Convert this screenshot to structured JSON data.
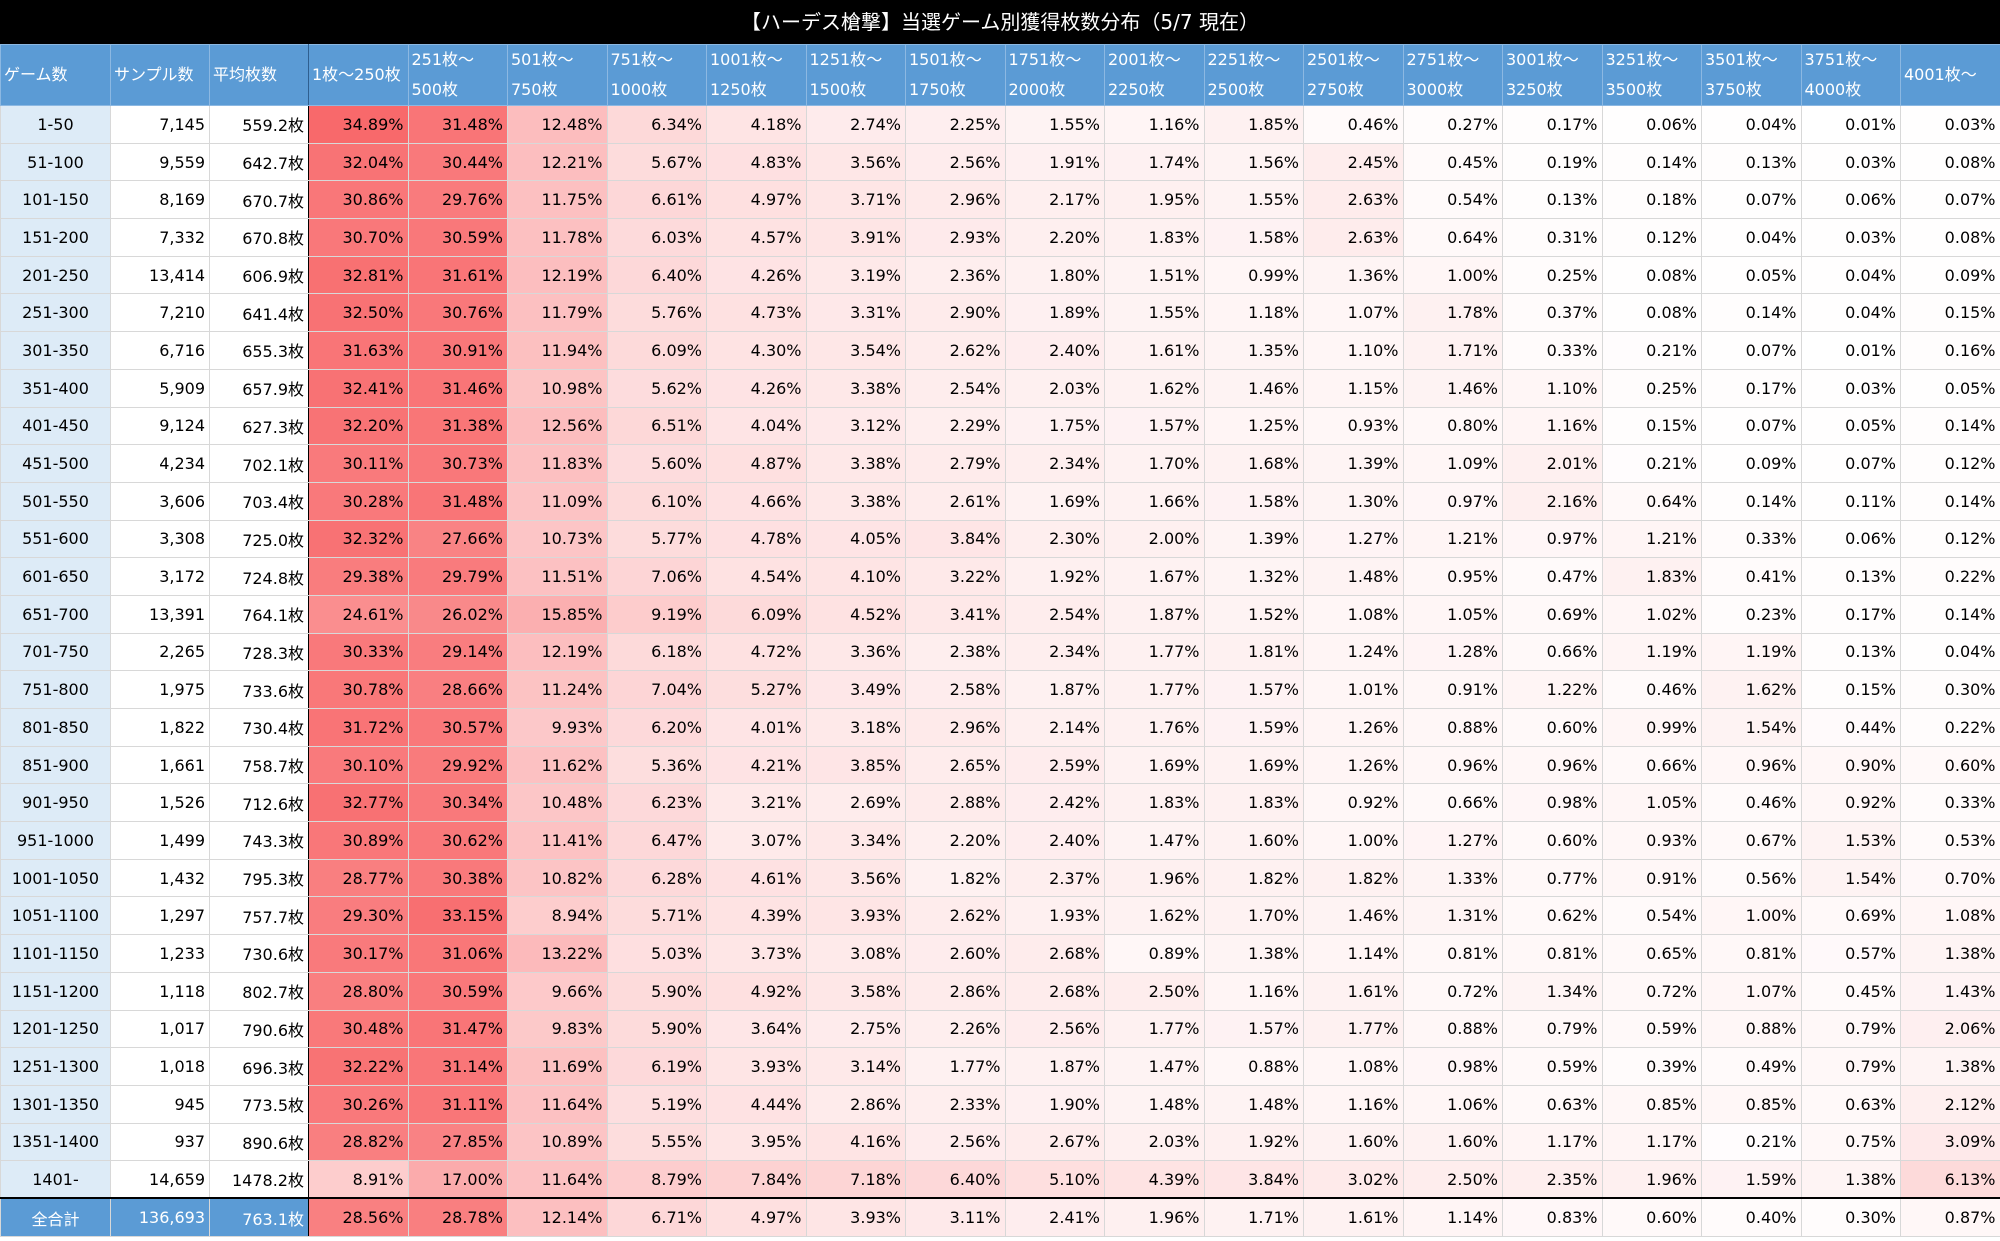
{
  "title": "【ハーデス槍撃】当選ゲーム別獲得枚数分布（5/7 現在）",
  "headers": [
    {
      "l1": "ゲーム数",
      "l2": ""
    },
    {
      "l1": "サンプル数",
      "l2": ""
    },
    {
      "l1": "平均枚数",
      "l2": ""
    },
    {
      "l1": "1枚〜250枚",
      "l2": ""
    },
    {
      "l1": "251枚〜",
      "l2": "500枚"
    },
    {
      "l1": "501枚〜",
      "l2": "750枚"
    },
    {
      "l1": "751枚〜",
      "l2": "1000枚"
    },
    {
      "l1": "1001枚〜",
      "l2": "1250枚"
    },
    {
      "l1": "1251枚〜",
      "l2": "1500枚"
    },
    {
      "l1": "1501枚〜",
      "l2": "1750枚"
    },
    {
      "l1": "1751枚〜",
      "l2": "2000枚"
    },
    {
      "l1": "2001枚〜",
      "l2": "2250枚"
    },
    {
      "l1": "2251枚〜",
      "l2": "2500枚"
    },
    {
      "l1": "2501枚〜",
      "l2": "2750枚"
    },
    {
      "l1": "2751枚〜",
      "l2": "3000枚"
    },
    {
      "l1": "3001枚〜",
      "l2": "3250枚"
    },
    {
      "l1": "3251枚〜",
      "l2": "3500枚"
    },
    {
      "l1": "3501枚〜",
      "l2": "3750枚"
    },
    {
      "l1": "3751枚〜",
      "l2": "4000枚"
    },
    {
      "l1": "4001枚〜",
      "l2": ""
    }
  ],
  "rows": [
    [
      "1-50",
      "7,145",
      "559.2枚",
      "34.89%",
      "31.48%",
      "12.48%",
      "6.34%",
      "4.18%",
      "2.74%",
      "2.25%",
      "1.55%",
      "1.16%",
      "1.85%",
      "0.46%",
      "0.27%",
      "0.17%",
      "0.06%",
      "0.04%",
      "0.01%",
      "0.03%"
    ],
    [
      "51-100",
      "9,559",
      "642.7枚",
      "32.04%",
      "30.44%",
      "12.21%",
      "5.67%",
      "4.83%",
      "3.56%",
      "2.56%",
      "1.91%",
      "1.74%",
      "1.56%",
      "2.45%",
      "0.45%",
      "0.19%",
      "0.14%",
      "0.13%",
      "0.03%",
      "0.08%"
    ],
    [
      "101-150",
      "8,169",
      "670.7枚",
      "30.86%",
      "29.76%",
      "11.75%",
      "6.61%",
      "4.97%",
      "3.71%",
      "2.96%",
      "2.17%",
      "1.95%",
      "1.55%",
      "2.63%",
      "0.54%",
      "0.13%",
      "0.18%",
      "0.07%",
      "0.06%",
      "0.07%"
    ],
    [
      "151-200",
      "7,332",
      "670.8枚",
      "30.70%",
      "30.59%",
      "11.78%",
      "6.03%",
      "4.57%",
      "3.91%",
      "2.93%",
      "2.20%",
      "1.83%",
      "1.58%",
      "2.63%",
      "0.64%",
      "0.31%",
      "0.12%",
      "0.04%",
      "0.03%",
      "0.08%"
    ],
    [
      "201-250",
      "13,414",
      "606.9枚",
      "32.81%",
      "31.61%",
      "12.19%",
      "6.40%",
      "4.26%",
      "3.19%",
      "2.36%",
      "1.80%",
      "1.51%",
      "0.99%",
      "1.36%",
      "1.00%",
      "0.25%",
      "0.08%",
      "0.05%",
      "0.04%",
      "0.09%"
    ],
    [
      "251-300",
      "7,210",
      "641.4枚",
      "32.50%",
      "30.76%",
      "11.79%",
      "5.76%",
      "4.73%",
      "3.31%",
      "2.90%",
      "1.89%",
      "1.55%",
      "1.18%",
      "1.07%",
      "1.78%",
      "0.37%",
      "0.08%",
      "0.14%",
      "0.04%",
      "0.15%"
    ],
    [
      "301-350",
      "6,716",
      "655.3枚",
      "31.63%",
      "30.91%",
      "11.94%",
      "6.09%",
      "4.30%",
      "3.54%",
      "2.62%",
      "2.40%",
      "1.61%",
      "1.35%",
      "1.10%",
      "1.71%",
      "0.33%",
      "0.21%",
      "0.07%",
      "0.01%",
      "0.16%"
    ],
    [
      "351-400",
      "5,909",
      "657.9枚",
      "32.41%",
      "31.46%",
      "10.98%",
      "5.62%",
      "4.26%",
      "3.38%",
      "2.54%",
      "2.03%",
      "1.62%",
      "1.46%",
      "1.15%",
      "1.46%",
      "1.10%",
      "0.25%",
      "0.17%",
      "0.03%",
      "0.05%"
    ],
    [
      "401-450",
      "9,124",
      "627.3枚",
      "32.20%",
      "31.38%",
      "12.56%",
      "6.51%",
      "4.04%",
      "3.12%",
      "2.29%",
      "1.75%",
      "1.57%",
      "1.25%",
      "0.93%",
      "0.80%",
      "1.16%",
      "0.15%",
      "0.07%",
      "0.05%",
      "0.14%"
    ],
    [
      "451-500",
      "4,234",
      "702.1枚",
      "30.11%",
      "30.73%",
      "11.83%",
      "5.60%",
      "4.87%",
      "3.38%",
      "2.79%",
      "2.34%",
      "1.70%",
      "1.68%",
      "1.39%",
      "1.09%",
      "2.01%",
      "0.21%",
      "0.09%",
      "0.07%",
      "0.12%"
    ],
    [
      "501-550",
      "3,606",
      "703.4枚",
      "30.28%",
      "31.48%",
      "11.09%",
      "6.10%",
      "4.66%",
      "3.38%",
      "2.61%",
      "1.69%",
      "1.66%",
      "1.58%",
      "1.30%",
      "0.97%",
      "2.16%",
      "0.64%",
      "0.14%",
      "0.11%",
      "0.14%"
    ],
    [
      "551-600",
      "3,308",
      "725.0枚",
      "32.32%",
      "27.66%",
      "10.73%",
      "5.77%",
      "4.78%",
      "4.05%",
      "3.84%",
      "2.30%",
      "2.00%",
      "1.39%",
      "1.27%",
      "1.21%",
      "0.97%",
      "1.21%",
      "0.33%",
      "0.06%",
      "0.12%"
    ],
    [
      "601-650",
      "3,172",
      "724.8枚",
      "29.38%",
      "29.79%",
      "11.51%",
      "7.06%",
      "4.54%",
      "4.10%",
      "3.22%",
      "1.92%",
      "1.67%",
      "1.32%",
      "1.48%",
      "0.95%",
      "0.47%",
      "1.83%",
      "0.41%",
      "0.13%",
      "0.22%"
    ],
    [
      "651-700",
      "13,391",
      "764.1枚",
      "24.61%",
      "26.02%",
      "15.85%",
      "9.19%",
      "6.09%",
      "4.52%",
      "3.41%",
      "2.54%",
      "1.87%",
      "1.52%",
      "1.08%",
      "1.05%",
      "0.69%",
      "1.02%",
      "0.23%",
      "0.17%",
      "0.14%"
    ],
    [
      "701-750",
      "2,265",
      "728.3枚",
      "30.33%",
      "29.14%",
      "12.19%",
      "6.18%",
      "4.72%",
      "3.36%",
      "2.38%",
      "2.34%",
      "1.77%",
      "1.81%",
      "1.24%",
      "1.28%",
      "0.66%",
      "1.19%",
      "1.19%",
      "0.13%",
      "0.04%"
    ],
    [
      "751-800",
      "1,975",
      "733.6枚",
      "30.78%",
      "28.66%",
      "11.24%",
      "7.04%",
      "5.27%",
      "3.49%",
      "2.58%",
      "1.87%",
      "1.77%",
      "1.57%",
      "1.01%",
      "0.91%",
      "1.22%",
      "0.46%",
      "1.62%",
      "0.15%",
      "0.30%"
    ],
    [
      "801-850",
      "1,822",
      "730.4枚",
      "31.72%",
      "30.57%",
      "9.93%",
      "6.20%",
      "4.01%",
      "3.18%",
      "2.96%",
      "2.14%",
      "1.76%",
      "1.59%",
      "1.26%",
      "0.88%",
      "0.60%",
      "0.99%",
      "1.54%",
      "0.44%",
      "0.22%"
    ],
    [
      "851-900",
      "1,661",
      "758.7枚",
      "30.10%",
      "29.92%",
      "11.62%",
      "5.36%",
      "4.21%",
      "3.85%",
      "2.65%",
      "2.59%",
      "1.69%",
      "1.69%",
      "1.26%",
      "0.96%",
      "0.96%",
      "0.66%",
      "0.96%",
      "0.90%",
      "0.60%"
    ],
    [
      "901-950",
      "1,526",
      "712.6枚",
      "32.77%",
      "30.34%",
      "10.48%",
      "6.23%",
      "3.21%",
      "2.69%",
      "2.88%",
      "2.42%",
      "1.83%",
      "1.83%",
      "0.92%",
      "0.66%",
      "0.98%",
      "1.05%",
      "0.46%",
      "0.92%",
      "0.33%"
    ],
    [
      "951-1000",
      "1,499",
      "743.3枚",
      "30.89%",
      "30.62%",
      "11.41%",
      "6.47%",
      "3.07%",
      "3.34%",
      "2.20%",
      "2.40%",
      "1.47%",
      "1.60%",
      "1.00%",
      "1.27%",
      "0.60%",
      "0.93%",
      "0.67%",
      "1.53%",
      "0.53%"
    ],
    [
      "1001-1050",
      "1,432",
      "795.3枚",
      "28.77%",
      "30.38%",
      "10.82%",
      "6.28%",
      "4.61%",
      "3.56%",
      "1.82%",
      "2.37%",
      "1.96%",
      "1.82%",
      "1.82%",
      "1.33%",
      "0.77%",
      "0.91%",
      "0.56%",
      "1.54%",
      "0.70%"
    ],
    [
      "1051-1100",
      "1,297",
      "757.7枚",
      "29.30%",
      "33.15%",
      "8.94%",
      "5.71%",
      "4.39%",
      "3.93%",
      "2.62%",
      "1.93%",
      "1.62%",
      "1.70%",
      "1.46%",
      "1.31%",
      "0.62%",
      "0.54%",
      "1.00%",
      "0.69%",
      "1.08%"
    ],
    [
      "1101-1150",
      "1,233",
      "730.6枚",
      "30.17%",
      "31.06%",
      "13.22%",
      "5.03%",
      "3.73%",
      "3.08%",
      "2.60%",
      "2.68%",
      "0.89%",
      "1.38%",
      "1.14%",
      "0.81%",
      "0.81%",
      "0.65%",
      "0.81%",
      "0.57%",
      "1.38%"
    ],
    [
      "1151-1200",
      "1,118",
      "802.7枚",
      "28.80%",
      "30.59%",
      "9.66%",
      "5.90%",
      "4.92%",
      "3.58%",
      "2.86%",
      "2.68%",
      "2.50%",
      "1.16%",
      "1.61%",
      "0.72%",
      "1.34%",
      "0.72%",
      "1.07%",
      "0.45%",
      "1.43%"
    ],
    [
      "1201-1250",
      "1,017",
      "790.6枚",
      "30.48%",
      "31.47%",
      "9.83%",
      "5.90%",
      "3.64%",
      "2.75%",
      "2.26%",
      "2.56%",
      "1.77%",
      "1.57%",
      "1.77%",
      "0.88%",
      "0.79%",
      "0.59%",
      "0.88%",
      "0.79%",
      "2.06%"
    ],
    [
      "1251-1300",
      "1,018",
      "696.3枚",
      "32.22%",
      "31.14%",
      "11.69%",
      "6.19%",
      "3.93%",
      "3.14%",
      "1.77%",
      "1.87%",
      "1.47%",
      "0.88%",
      "1.08%",
      "0.98%",
      "0.59%",
      "0.39%",
      "0.49%",
      "0.79%",
      "1.38%"
    ],
    [
      "1301-1350",
      "945",
      "773.5枚",
      "30.26%",
      "31.11%",
      "11.64%",
      "5.19%",
      "4.44%",
      "2.86%",
      "2.33%",
      "1.90%",
      "1.48%",
      "1.48%",
      "1.16%",
      "1.06%",
      "0.63%",
      "0.85%",
      "0.85%",
      "0.63%",
      "2.12%"
    ],
    [
      "1351-1400",
      "937",
      "890.6枚",
      "28.82%",
      "27.85%",
      "10.89%",
      "5.55%",
      "3.95%",
      "4.16%",
      "2.56%",
      "2.67%",
      "2.03%",
      "1.92%",
      "1.60%",
      "1.60%",
      "1.17%",
      "1.17%",
      "0.21%",
      "0.75%",
      "3.09%"
    ],
    [
      "1401-",
      "14,659",
      "1478.2枚",
      "8.91%",
      "17.00%",
      "11.64%",
      "8.79%",
      "7.84%",
      "7.18%",
      "6.40%",
      "5.10%",
      "4.39%",
      "3.84%",
      "3.02%",
      "2.50%",
      "2.35%",
      "1.96%",
      "1.59%",
      "1.38%",
      "6.13%"
    ]
  ],
  "total": [
    "全合計",
    "136,693",
    "763.1枚",
    "28.56%",
    "28.78%",
    "12.14%",
    "6.71%",
    "4.97%",
    "3.93%",
    "3.11%",
    "2.41%",
    "1.96%",
    "1.71%",
    "1.61%",
    "1.14%",
    "0.83%",
    "0.60%",
    "0.40%",
    "0.30%",
    "0.87%"
  ],
  "colors": {
    "header": "#5b9bd5",
    "game_col": "#ddebf7",
    "heat": "#f8696b",
    "title_bg": "#000000"
  }
}
